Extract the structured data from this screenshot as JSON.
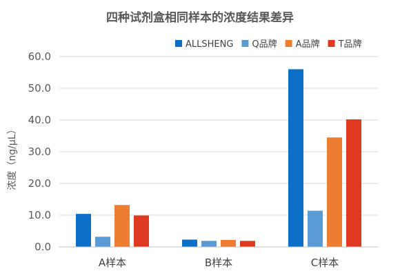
{
  "chart_data": {
    "type": "bar",
    "title": "四种试剂盒相同样本的浓度结果差异",
    "ylabel": "浓度（ng/μL）",
    "xlabel": "",
    "categories": [
      "A样本",
      "B样本",
      "C样本"
    ],
    "ylim": [
      0,
      60
    ],
    "yticks": [
      "0.0",
      "10.0",
      "20.0",
      "30.0",
      "40.0",
      "50.0",
      "60.0"
    ],
    "grid": true,
    "legend_position": "top-right",
    "series": [
      {
        "name": "ALLSHENG",
        "color": "#0b6ec7",
        "values": [
          10.4,
          2.3,
          56.0
        ]
      },
      {
        "name": "Q品牌",
        "color": "#5b9bd5",
        "values": [
          3.2,
          1.9,
          11.4
        ]
      },
      {
        "name": "A品牌",
        "color": "#ed7d31",
        "values": [
          13.2,
          2.2,
          34.5
        ]
      },
      {
        "name": "T品牌",
        "color": "#de3a21",
        "values": [
          9.9,
          1.9,
          40.2
        ]
      }
    ]
  }
}
